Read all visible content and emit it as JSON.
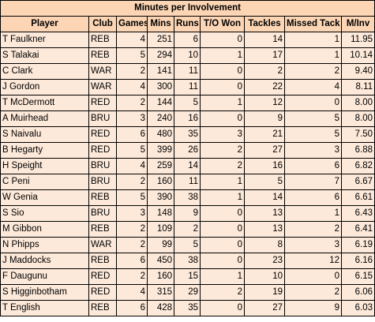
{
  "title": "Minutes per Involvement",
  "headers": [
    "Player",
    "Club",
    "Games",
    "Mins",
    "Runs",
    "T/O Won",
    "Tackles",
    "Missed Tack",
    "M/Inv"
  ],
  "rows": [
    [
      "T Faulkner",
      "REB",
      "4",
      "251",
      "6",
      "0",
      "14",
      "1",
      "11.95"
    ],
    [
      "S Talakai",
      "REB",
      "5",
      "294",
      "10",
      "1",
      "17",
      "1",
      "10.14"
    ],
    [
      "C Clark",
      "WAR",
      "2",
      "141",
      "11",
      "0",
      "2",
      "2",
      "9.40"
    ],
    [
      "J Gordon",
      "WAR",
      "4",
      "300",
      "11",
      "0",
      "22",
      "4",
      "8.11"
    ],
    [
      "T McDermott",
      "RED",
      "2",
      "144",
      "5",
      "1",
      "12",
      "0",
      "8.00"
    ],
    [
      "A Muirhead",
      "BRU",
      "3",
      "240",
      "16",
      "0",
      "9",
      "5",
      "8.00"
    ],
    [
      "S Naivalu",
      "RED",
      "6",
      "480",
      "35",
      "3",
      "21",
      "5",
      "7.50"
    ],
    [
      "B Hegarty",
      "RED",
      "5",
      "399",
      "26",
      "2",
      "27",
      "3",
      "6.88"
    ],
    [
      "H Speight",
      "BRU",
      "4",
      "259",
      "14",
      "2",
      "16",
      "6",
      "6.82"
    ],
    [
      "C Peni",
      "BRU",
      "2",
      "160",
      "11",
      "1",
      "5",
      "7",
      "6.67"
    ],
    [
      "W Genia",
      "REB",
      "5",
      "390",
      "38",
      "1",
      "14",
      "6",
      "6.61"
    ],
    [
      "S Sio",
      "BRU",
      "3",
      "148",
      "9",
      "0",
      "13",
      "1",
      "6.43"
    ],
    [
      "M Gibbon",
      "REB",
      "2",
      "109",
      "2",
      "0",
      "13",
      "2",
      "6.41"
    ],
    [
      "N Phipps",
      "WAR",
      "2",
      "99",
      "5",
      "0",
      "8",
      "3",
      "6.19"
    ],
    [
      "J Maddocks",
      "REB",
      "6",
      "450",
      "38",
      "0",
      "23",
      "12",
      "6.16"
    ],
    [
      "F Daugunu",
      "RED",
      "2",
      "160",
      "15",
      "1",
      "10",
      "0",
      "6.15"
    ],
    [
      "S Higginbotham",
      "RED",
      "4",
      "315",
      "29",
      "2",
      "19",
      "2",
      "6.06"
    ],
    [
      "T English",
      "REB",
      "6",
      "428",
      "35",
      "0",
      "27",
      "9",
      "6.03"
    ]
  ]
}
